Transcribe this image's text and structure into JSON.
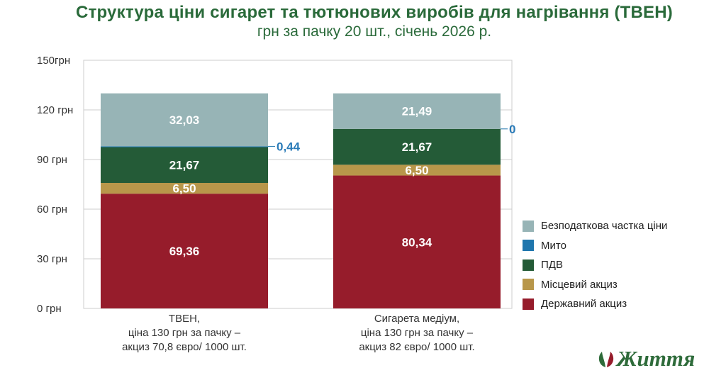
{
  "chart_data": {
    "type": "bar",
    "stacked": true,
    "title": "Структура ціни сигарет та тютюнових виробів для нагрівання (ТВЕН)",
    "subtitle": "грн за пачку 20 шт., січень 2026 р.",
    "categories": [
      [
        "ТВЕН,",
        "ціна 130 грн за пачку –",
        "акциз 70,8 євро/ 1000 шт."
      ],
      [
        "Сигарета медіум,",
        "ціна 130 грн за пачку –",
        "акциз 82 євро/ 1000 шт."
      ]
    ],
    "series": [
      {
        "name": "Державний акциз",
        "color": "#961c2b",
        "values": [
          69.36,
          80.34
        ],
        "labels": [
          "69,36",
          "80,34"
        ]
      },
      {
        "name": "Місцевий акциз",
        "color": "#b8974a",
        "values": [
          6.5,
          6.5
        ],
        "labels": [
          "6,50",
          "6,50"
        ]
      },
      {
        "name": "ПДВ",
        "color": "#245b37",
        "values": [
          21.67,
          21.67
        ],
        "labels": [
          "21,67",
          "21,67"
        ]
      },
      {
        "name": "Мито",
        "color": "#1f76ad",
        "values": [
          0.44,
          0
        ],
        "labels": [
          "0,44",
          "0"
        ]
      },
      {
        "name": "Безподаткова частка ціни",
        "color": "#97b4b6",
        "values": [
          32.03,
          21.49
        ],
        "labels": [
          "32,03",
          "21,49"
        ]
      }
    ],
    "legend_order": [
      4,
      3,
      2,
      1,
      0
    ],
    "ylim": [
      0,
      150
    ],
    "yticks": [
      0,
      30,
      60,
      90,
      120,
      150
    ],
    "ytick_labels": [
      "0 грн",
      "30 грн",
      "60 грн",
      "90 грн",
      "120 грн",
      "150грн"
    ],
    "grid": true,
    "legend_position": "right"
  },
  "logo": {
    "text": "Життя"
  }
}
